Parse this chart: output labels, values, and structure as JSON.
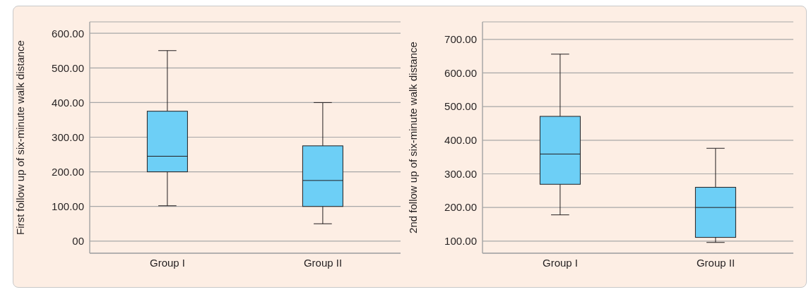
{
  "chart_data": [
    {
      "type": "box",
      "categories": [
        "Group I",
        "Group II"
      ],
      "ylabel": "First follow up of six-minute walk distance",
      "color": "#6dcff6",
      "grid": "y",
      "ylim": [
        -35,
        633
      ],
      "yticks": [
        {
          "value": 0,
          "label": "00"
        },
        {
          "value": 100,
          "label": "100.00"
        },
        {
          "value": 200,
          "label": "200.00"
        },
        {
          "value": 300,
          "label": "300.00"
        },
        {
          "value": 400,
          "label": "400.00"
        },
        {
          "value": 500,
          "label": "500.00"
        },
        {
          "value": 600,
          "label": "600.00"
        }
      ],
      "boxes": [
        {
          "low": 102,
          "q1": 200,
          "median": 245,
          "q3": 375,
          "high": 550
        },
        {
          "low": 50,
          "q1": 100,
          "median": 175,
          "q3": 275,
          "high": 400
        }
      ]
    },
    {
      "type": "box",
      "categories": [
        "Group I",
        "Group II"
      ],
      "ylabel": "2nd follow up of six-minute walk distance",
      "color": "#6dcff6",
      "grid": "y",
      "ylim": [
        64,
        752
      ],
      "yticks": [
        {
          "value": 100,
          "label": "100.00"
        },
        {
          "value": 200,
          "label": "200.00"
        },
        {
          "value": 300,
          "label": "300.00"
        },
        {
          "value": 400,
          "label": "400.00"
        },
        {
          "value": 500,
          "label": "500.00"
        },
        {
          "value": 600,
          "label": "600.00"
        },
        {
          "value": 700,
          "label": "700.00"
        }
      ],
      "boxes": [
        {
          "low": 178,
          "q1": 269,
          "median": 359,
          "q3": 471,
          "high": 656
        },
        {
          "low": 96,
          "q1": 111,
          "median": 200,
          "q3": 260,
          "high": 376
        }
      ]
    }
  ]
}
